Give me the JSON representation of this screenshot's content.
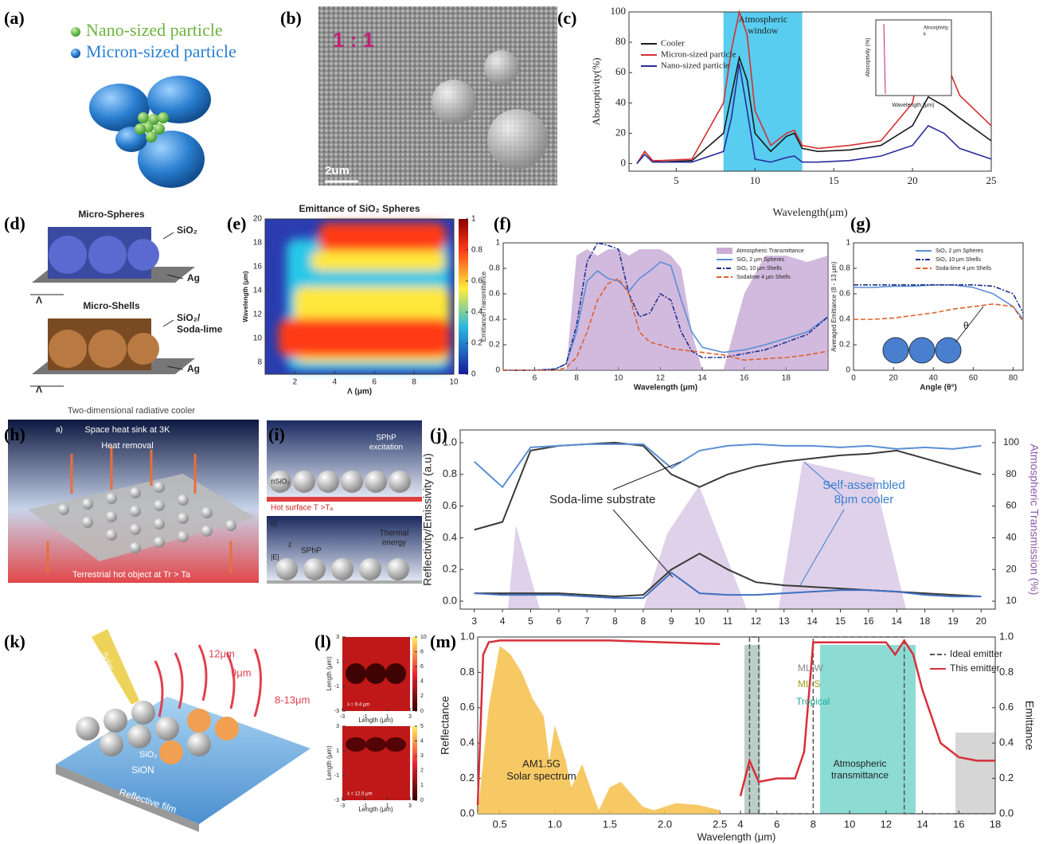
{
  "panels": {
    "a": {
      "label": "(a)",
      "legend": [
        "Nano-sized particle",
        "Micron-sized particle"
      ]
    },
    "b": {
      "label": "(b)",
      "ratio": "1 : 1",
      "scale_bar": "2um"
    },
    "d": {
      "label": "(d)",
      "top": {
        "title": "Micro-Spheres",
        "material": "SiO₂",
        "substrate": "Ag",
        "period": "Λ"
      },
      "bottom": {
        "title": "Micro-Shells",
        "material": [
          "SiO₂/",
          "Soda-lime"
        ],
        "substrate": "Ag",
        "period": "Λ"
      }
    },
    "h": {
      "label": "(h)",
      "title": "Two-dimensional radiative cooler",
      "sub": "a)",
      "sink": "Space heat sink at 3K",
      "removal": "Heat removal",
      "source": "Terrestrial hot object at Tr > Ta"
    },
    "i": {
      "label": "(i)",
      "particle": "nSiO₂",
      "excitation": [
        "SPhP",
        "excitation"
      ],
      "surface": "Hot surface T >Tₐ",
      "sub": "ii)",
      "energy": [
        "Thermal",
        "energy"
      ],
      "sphp": "SPhP",
      "field": "|E|",
      "axis": "z"
    },
    "k": {
      "label": "(k)",
      "solar": "Solar",
      "w1": "12μm",
      "w2": "9μm",
      "w3": "8-13μm",
      "layer1": "SiO₂",
      "layer2": "SiON",
      "layer3": "Reflective film"
    },
    "l": {
      "label": "(l)",
      "x_label": "Length (μm)",
      "y_label": "Length (μm)",
      "top": {
        "note": "λ = 9.4 μm",
        "xlim": [
          -3,
          3
        ],
        "xticks": [
          -3,
          -1,
          1,
          3
        ],
        "ylim": [
          -3,
          3
        ],
        "yticks": [
          -3,
          -1,
          1,
          3
        ],
        "y2lim": [
          0,
          10
        ],
        "y2ticks": [
          0,
          2,
          4,
          6,
          8,
          10
        ]
      },
      "bottom": {
        "note": "λ = 12.5 μm",
        "xlim": [
          -3,
          3
        ],
        "xticks": [
          -3,
          -1,
          1,
          3
        ],
        "ylim": [
          -3,
          3
        ],
        "yticks": [
          -3,
          -1,
          1,
          3
        ],
        "y2lim": [
          0,
          5
        ],
        "y2ticks": [
          0,
          1,
          2,
          3,
          4,
          5
        ]
      }
    }
  },
  "chart_data": [
    {
      "type": "line",
      "panel_label": "(c)",
      "x_label": "Wavelength(μm)",
      "y_label": "Absorptivity(%)",
      "annotation": [
        "Atmospheric",
        "window"
      ],
      "window": [
        8,
        13
      ],
      "xlim": [
        2,
        25
      ],
      "xticks": [
        5,
        10,
        15,
        20,
        25
      ],
      "ylim": [
        -5,
        100
      ],
      "yticks": [
        0,
        20,
        40,
        60,
        80,
        100
      ],
      "inset": {
        "y_label": "Absorptivity (%)",
        "x_label": "Wavelength (μm)",
        "legend": [
          "Absorptivity",
          "k"
        ]
      },
      "x": [
        2.5,
        3,
        3.5,
        4,
        6,
        8,
        8.5,
        9,
        9.5,
        10,
        11,
        12,
        12.5,
        13,
        14,
        16,
        18,
        20,
        21,
        22,
        23,
        25
      ],
      "series": [
        {
          "name": "Cooler",
          "color": "#1a1a1a",
          "values": [
            0,
            8,
            2,
            1,
            2,
            20,
            45,
            70,
            55,
            20,
            8,
            18,
            20,
            10,
            8,
            9,
            12,
            25,
            44,
            38,
            30,
            15
          ]
        },
        {
          "name": "Micron-sized particle",
          "color": "#d62f2f",
          "values": [
            0,
            8,
            2,
            2,
            3,
            40,
            75,
            100,
            85,
            35,
            12,
            20,
            22,
            12,
            10,
            12,
            15,
            40,
            92,
            70,
            45,
            25
          ]
        },
        {
          "name": "Nano-sized particle",
          "color": "#2a2a9c",
          "values": [
            0,
            6,
            1,
            1,
            1,
            8,
            30,
            66,
            35,
            3,
            1,
            4,
            5,
            1,
            1,
            2,
            5,
            12,
            25,
            20,
            10,
            3
          ]
        }
      ]
    },
    {
      "type": "heatmap",
      "panel_label": "(e)",
      "title": "Emittance of SiO₂ Spheres",
      "x_label": "Λ (μm)",
      "y_label": "Wavelength (μm)",
      "xlim": [
        0.5,
        10
      ],
      "xticks": [
        2,
        4,
        6,
        8,
        10
      ],
      "ylim": [
        7,
        20
      ],
      "yticks": [
        8,
        10,
        12,
        14,
        16,
        18,
        20
      ],
      "y2lim": [
        0,
        1
      ],
      "y2ticks": [
        0,
        0.2,
        0.4,
        0.6,
        0.8,
        1
      ]
    },
    {
      "type": "line",
      "panel_label": "(f)",
      "x_label": "Wavelength (μm)",
      "y_label": "Emittance/Transmittance",
      "xlim": [
        4.5,
        20
      ],
      "xticks": [
        6,
        8,
        10,
        12,
        14,
        16,
        18
      ],
      "ylim": [
        0,
        1
      ],
      "yticks": [
        0,
        0.2,
        0.4,
        0.6,
        0.8,
        1
      ],
      "x": [
        4.5,
        6,
        7,
        7.5,
        8,
        8.5,
        9,
        9.5,
        10,
        10.5,
        11,
        11.5,
        12,
        12.5,
        13,
        13.5,
        14,
        15,
        16,
        17,
        18,
        19,
        20
      ],
      "series": [
        {
          "name": "Atmospheric Transmittance",
          "color": "#b48cc8",
          "style": "area",
          "values": [
            0,
            0,
            0,
            0,
            0.9,
            0.95,
            0.9,
            0.95,
            0.95,
            0.9,
            0.95,
            0.95,
            0.95,
            0.9,
            0.8,
            0.3,
            0,
            0,
            0.6,
            0.9,
            0.9,
            0.85,
            0.9
          ]
        },
        {
          "name": "SiO₂ 2 μm Spheres",
          "color": "#5b8fd6",
          "style": "solid",
          "values": [
            0,
            0,
            0.01,
            0.05,
            0.3,
            0.7,
            0.78,
            0.72,
            0.7,
            0.62,
            0.72,
            0.78,
            0.85,
            0.82,
            0.55,
            0.3,
            0.18,
            0.14,
            0.16,
            0.2,
            0.25,
            0.3,
            0.42
          ]
        },
        {
          "name": "SiO₂ 10 μm Shells",
          "color": "#1f2f8c",
          "style": "dashdot",
          "values": [
            0,
            0,
            0.01,
            0.05,
            0.35,
            0.85,
            1,
            0.98,
            0.95,
            0.6,
            0.42,
            0.45,
            0.6,
            0.55,
            0.3,
            0.15,
            0.1,
            0.1,
            0.13,
            0.16,
            0.22,
            0.28,
            0.42
          ]
        },
        {
          "name": "Sodalime 4 μm Shells",
          "color": "#e0602a",
          "style": "dashed",
          "values": [
            0,
            0,
            0,
            0.02,
            0.1,
            0.3,
            0.55,
            0.68,
            0.72,
            0.6,
            0.3,
            0.22,
            0.2,
            0.17,
            0.16,
            0.15,
            0.14,
            0.12,
            0.08,
            0.09,
            0.1,
            0.12,
            0.15
          ]
        }
      ]
    },
    {
      "type": "line",
      "panel_label": "(g)",
      "x_label": "Angle (θ°)",
      "y_label": "Averaged Emittance (8 - 13 μm)",
      "angle_symbol": "θ",
      "xlim": [
        0,
        85
      ],
      "xticks": [
        0,
        20,
        40,
        60,
        80
      ],
      "ylim": [
        0,
        1
      ],
      "yticks": [
        0,
        0.2,
        0.4,
        0.6,
        0.8,
        1
      ],
      "x": [
        0,
        10,
        20,
        30,
        40,
        50,
        60,
        70,
        80,
        85
      ],
      "series": [
        {
          "name": "SiO₂ 2 μm Spheres",
          "color": "#5b8fd6",
          "style": "solid",
          "values": [
            0.65,
            0.65,
            0.66,
            0.66,
            0.67,
            0.67,
            0.65,
            0.6,
            0.5,
            0.4
          ]
        },
        {
          "name": "SiO₂ 10 μm Shells",
          "color": "#1f2f8c",
          "style": "dashdot",
          "values": [
            0.67,
            0.67,
            0.67,
            0.67,
            0.67,
            0.67,
            0.67,
            0.66,
            0.6,
            0.45
          ]
        },
        {
          "name": "Soda-lime 4 μm Shells",
          "color": "#e0602a",
          "style": "dashed",
          "values": [
            0.4,
            0.4,
            0.41,
            0.43,
            0.45,
            0.48,
            0.5,
            0.52,
            0.5,
            0.38
          ]
        }
      ]
    },
    {
      "type": "category-line",
      "panel_label": "(j)",
      "y_label": "Reflectivity/Emissivity (a.u)",
      "y2_label": "Atmospheric Transmission (%)",
      "annotations": [
        [
          "Soda-lime substrate"
        ],
        [
          "Self-assembled",
          "8μm cooler"
        ]
      ],
      "categories": [
        3,
        4,
        5,
        6,
        7,
        8,
        8,
        9,
        10,
        11,
        12,
        13,
        14,
        15,
        16,
        14,
        18,
        19,
        20
      ],
      "ylim": [
        -0.05,
        1.08
      ],
      "yticks": [
        {
          "value": 0,
          "label": "0.0"
        },
        0.2,
        0.4,
        0.6,
        0.8,
        {
          "value": 1,
          "label": "1.0"
        }
      ],
      "y2ticks": [
        10,
        20,
        40,
        60,
        80,
        100
      ],
      "series": [
        {
          "color": "#3a3a3a",
          "values": [
            0.45,
            0.5,
            0.95,
            0.98,
            0.99,
            1,
            0.98,
            0.8,
            0.72,
            0.8,
            0.85,
            0.88,
            0.9,
            0.92,
            0.93,
            0.95,
            0.9,
            0.85,
            0.8
          ]
        },
        {
          "color": "#5b8fd6",
          "values": [
            0.88,
            0.72,
            0.97,
            0.98,
            0.99,
            0.99,
            0.99,
            0.84,
            0.95,
            0.98,
            0.99,
            0.98,
            0.98,
            0.97,
            0.98,
            0.96,
            0.97,
            0.96,
            0.98
          ]
        },
        {
          "color": "#3a3a3a",
          "values": [
            0.05,
            0.05,
            0.05,
            0.05,
            0.04,
            0.03,
            0.04,
            0.2,
            0.3,
            0.2,
            0.12,
            0.1,
            0.09,
            0.08,
            0.07,
            0.06,
            0.05,
            0.04,
            0.03
          ]
        },
        {
          "color": "#3f6fc0",
          "values": [
            0.05,
            0.04,
            0.04,
            0.04,
            0.03,
            0.02,
            0.02,
            0.18,
            0.05,
            0.04,
            0.04,
            0.05,
            0.06,
            0.07,
            0.07,
            0.06,
            0.04,
            0.03,
            0.03
          ]
        }
      ]
    },
    {
      "type": "broken-line",
      "panel_label": "(m)",
      "x_label": "Wavelength (μm)",
      "y_label": "Reflectance",
      "y2_label": "Emittance",
      "labels": [
        "ML-W",
        "ML-S",
        "Tropical"
      ],
      "solar_label": [
        "AM1.5G",
        "Solar spectrum"
      ],
      "atmos_label": [
        "Atmospheric",
        "transmittance"
      ],
      "xlim_left": [
        0.3,
        2.6
      ],
      "xticks_left": [
        0.5,
        {
          "value": 1,
          "label": "1.0"
        },
        1.5,
        {
          "value": 2,
          "label": "2.0"
        },
        2.5
      ],
      "xlim_right": [
        4,
        18
      ],
      "xticks_right": [
        4,
        6,
        8,
        10,
        12,
        14,
        16,
        18
      ],
      "ylim": [
        0,
        1
      ],
      "yticks": [
        {
          "value": 0,
          "label": "0.0"
        },
        0.2,
        0.4,
        0.6,
        0.8,
        {
          "value": 1,
          "label": "1.0"
        }
      ],
      "y2ticks": [
        {
          "value": 0,
          "label": "0.0"
        },
        0.2,
        0.4,
        0.6,
        0.8,
        {
          "value": 1,
          "label": "1.0"
        }
      ],
      "solar": {
        "color": "#f5c04a",
        "x": [
          0.3,
          0.4,
          0.5,
          0.6,
          0.7,
          0.8,
          0.9,
          0.95,
          1,
          1.1,
          1.15,
          1.25,
          1.35,
          1.4,
          1.5,
          1.6,
          1.8,
          1.9,
          2.1,
          2.3,
          2.5
        ],
        "values": [
          0,
          0.6,
          0.95,
          0.9,
          0.8,
          0.65,
          0.55,
          0.3,
          0.5,
          0.3,
          0.15,
          0.28,
          0.1,
          0.02,
          0.15,
          0.18,
          0.04,
          0.02,
          0.06,
          0.05,
          0.02
        ]
      },
      "reflectance": {
        "color": "#d62f3a",
        "x": [
          0.3,
          0.35,
          0.4,
          0.5,
          1,
          1.5,
          2,
          2.5
        ],
        "values": [
          0.05,
          0.9,
          0.97,
          0.98,
          0.98,
          0.98,
          0.97,
          0.96
        ]
      },
      "series": [
        {
          "name": "Ideal emitter",
          "color": "#555555",
          "style": "dashed",
          "x": [
            4.5,
            4.5,
            5,
            5,
            8,
            8,
            13,
            13,
            18
          ],
          "values": [
            0,
            1,
            1,
            0,
            0,
            1,
            1,
            0,
            0
          ]
        },
        {
          "name": "This emitter",
          "color": "#d62f3a",
          "style": "solid",
          "x": [
            4,
            4.5,
            5,
            6,
            7,
            7.5,
            8,
            9,
            10,
            11,
            12,
            12.5,
            13,
            13.5,
            14,
            15,
            16,
            17,
            18
          ],
          "values": [
            0.1,
            0.3,
            0.18,
            0.2,
            0.2,
            0.35,
            0.97,
            0.97,
            0.97,
            0.97,
            0.97,
            0.9,
            0.98,
            0.9,
            0.7,
            0.4,
            0.32,
            0.3,
            0.3
          ]
        }
      ]
    }
  ]
}
